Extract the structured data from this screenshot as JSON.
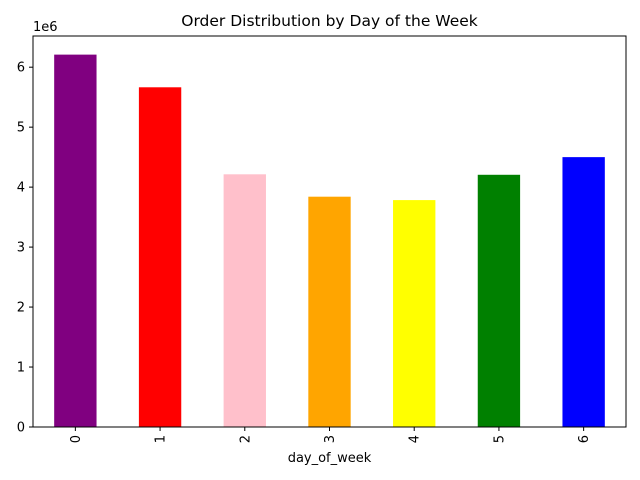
{
  "chart_data": {
    "type": "bar",
    "title": "Order Distribution by Day of the Week",
    "xlabel": "day_of_week",
    "ylabel": "",
    "y_scale_label": "1e6",
    "y_multiplier": 1000000,
    "categories": [
      "0",
      "1",
      "2",
      "3",
      "4",
      "5",
      "6"
    ],
    "values": [
      6209666,
      5664881,
      4213830,
      3840534,
      3783802,
      4205791,
      4500304
    ],
    "colors": [
      "#800080",
      "#ff0000",
      "#ffc0cb",
      "#ffa500",
      "#ffff00",
      "#008000",
      "#0000ff"
    ],
    "ylim": [
      0,
      6520149
    ],
    "yticks": [
      0,
      1,
      2,
      3,
      4,
      5,
      6
    ],
    "grid": false,
    "legend": false
  }
}
